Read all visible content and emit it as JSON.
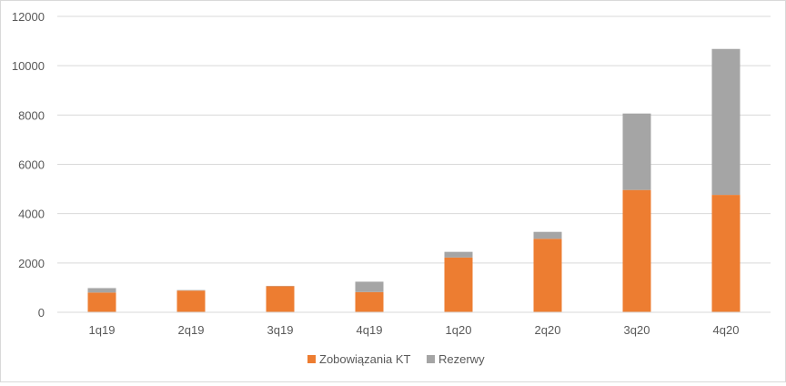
{
  "chart_data": {
    "type": "bar",
    "stacked": true,
    "categories": [
      "1q19",
      "2q19",
      "3q19",
      "4q19",
      "1q20",
      "2q20",
      "3q20",
      "4q20"
    ],
    "series": [
      {
        "name": "Zobowiązania KT",
        "color": "#ED7D31",
        "values": [
          800,
          880,
          1060,
          820,
          2220,
          2980,
          4960,
          4760
        ]
      },
      {
        "name": "Rezerwy",
        "color": "#A5A5A5",
        "values": [
          180,
          20,
          10,
          420,
          230,
          280,
          3100,
          5920
        ]
      }
    ],
    "ylim": [
      0,
      12000
    ],
    "yticks": [
      "0",
      "2000",
      "4000",
      "6000",
      "8000",
      "10000",
      "12000"
    ],
    "grid": true,
    "legend_position": "bottom"
  }
}
